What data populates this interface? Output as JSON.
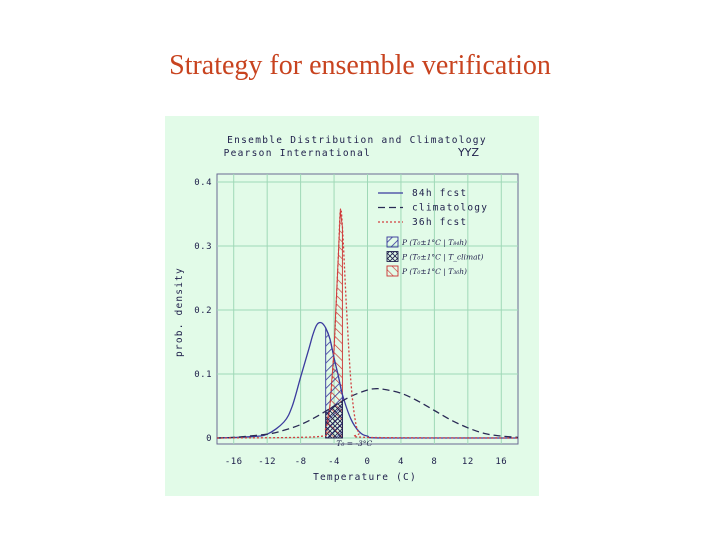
{
  "slide": {
    "title": "Strategy for ensemble verification"
  },
  "chart_data": {
    "type": "line",
    "title": "Ensemble Distribution and Climatology",
    "subtitle": "Pearson International",
    "station_code": "YYZ",
    "xlabel": "Temperature (C)",
    "ylabel": "prob. density",
    "xlim": [
      -18,
      18
    ],
    "ylim": [
      0,
      0.4
    ],
    "xticks": [
      -16,
      -12,
      -8,
      -4,
      0,
      4,
      8,
      12,
      16
    ],
    "xtick_labels": [
      "-16",
      "-12",
      "-8",
      "-4",
      "0",
      "4",
      "8",
      "12",
      "16"
    ],
    "yticks": [
      0,
      0.1,
      0.2,
      0.3,
      0.4
    ],
    "ytick_labels": [
      "0",
      "0.1",
      "0.2",
      "0.3",
      "0.4"
    ],
    "grid": true,
    "legend_position": "top-right",
    "series": [
      {
        "name": "84h fcst",
        "color": "#3b3b9e",
        "dash": "solid",
        "x": [
          -18,
          -14,
          -12,
          -10,
          -9,
          -8,
          -7,
          -6.5,
          -6,
          -5.5,
          -5,
          -4.5,
          -4,
          -3.5,
          -3,
          -2,
          -1,
          0,
          2,
          18
        ],
        "y": [
          0,
          0.002,
          0.006,
          0.025,
          0.05,
          0.095,
          0.14,
          0.163,
          0.178,
          0.18,
          0.172,
          0.155,
          0.125,
          0.098,
          0.068,
          0.03,
          0.01,
          0.003,
          0,
          0
        ]
      },
      {
        "name": "climatology",
        "color": "#2a2a55",
        "dash": "long-dash",
        "x": [
          -18,
          -16,
          -12,
          -10,
          -8,
          -6,
          -4,
          -2,
          0,
          1,
          2,
          4,
          6,
          8,
          10,
          12,
          14,
          16,
          18
        ],
        "y": [
          0,
          0.001,
          0.006,
          0.012,
          0.021,
          0.034,
          0.05,
          0.065,
          0.075,
          0.077,
          0.076,
          0.07,
          0.058,
          0.043,
          0.028,
          0.016,
          0.007,
          0.003,
          0.001
        ]
      },
      {
        "name": "36h fcst",
        "color": "#d24040",
        "dash": "dotted",
        "x": [
          -18,
          -6,
          -5,
          -4.5,
          -4,
          -3.5,
          -3.25,
          -3,
          -2.5,
          -2,
          -1.5,
          -1,
          0,
          18
        ],
        "y": [
          0,
          0.002,
          0.015,
          0.05,
          0.14,
          0.28,
          0.355,
          0.33,
          0.2,
          0.09,
          0.03,
          0.008,
          0.001,
          0
        ]
      }
    ],
    "shaded_regions": [
      {
        "label": "P (T₀±1°C | T₈₄h)",
        "series": "84h fcst",
        "x_range": [
          -5,
          -3
        ],
        "pattern": "blue-diagonal"
      },
      {
        "label": "P (T₀±1°C | T_climat)",
        "series": "climatology",
        "x_range": [
          -5,
          -3
        ],
        "pattern": "crosshatch"
      },
      {
        "label": "P (T₀±1°C | T₃₆h)",
        "series": "36h fcst",
        "x_range": [
          -5,
          -3
        ],
        "pattern": "red-diagonal"
      }
    ],
    "annotations": [
      {
        "text": "T₀ = -3°C",
        "x": -3
      }
    ]
  }
}
